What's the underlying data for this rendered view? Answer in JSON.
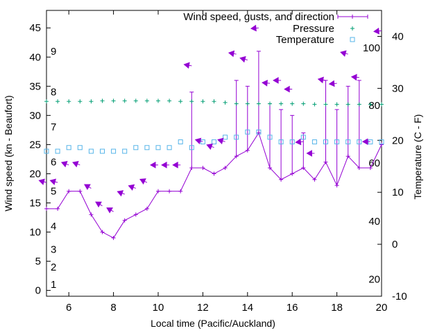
{
  "chart_data": {
    "type": "line",
    "xlabel": "Local time (Pacific/Auckland)",
    "ylabel": "Wind speed (kn - Beaufort)",
    "y2label": "Temperature (C - F)",
    "xlim": [
      5,
      20
    ],
    "ylim": [
      -1,
      48
    ],
    "y2lim": [
      -10,
      45
    ],
    "x_ticks": [
      6,
      8,
      10,
      12,
      14,
      16,
      18,
      20
    ],
    "y_ticks": [
      0,
      5,
      10,
      15,
      20,
      25,
      30,
      35,
      40,
      45
    ],
    "y2_ticks": [
      -10,
      0,
      10,
      20,
      30,
      40
    ],
    "beaufort": [
      {
        "label": "1",
        "y": 1
      },
      {
        "label": "2",
        "y": 4
      },
      {
        "label": "3",
        "y": 7
      },
      {
        "label": "4",
        "y": 11
      },
      {
        "label": "5",
        "y": 17
      },
      {
        "label": "6",
        "y": 22
      },
      {
        "label": "7",
        "y": 28
      },
      {
        "label": "8",
        "y": 34
      },
      {
        "label": "9",
        "y": 41
      }
    ],
    "fahrenheit": [
      {
        "label": "20",
        "t": -6.7
      },
      {
        "label": "40",
        "t": 4.4
      },
      {
        "label": "60",
        "t": 15.6
      },
      {
        "label": "80",
        "t": 26.7
      },
      {
        "label": "100",
        "t": 37.8
      }
    ],
    "legend": [
      {
        "name": "Wind speed, gusts, and direction",
        "color": "#9400d3",
        "marker": "errorbar"
      },
      {
        "name": "Pressure",
        "color": "#009e73",
        "marker": "plus"
      },
      {
        "name": "Temperature",
        "color": "#56b4e9",
        "marker": "square"
      }
    ],
    "legend_position": "top-right",
    "colors": {
      "wind": "#9400d3",
      "pressure": "#009e73",
      "temperature": "#56b4e9"
    },
    "wind": {
      "x": [
        5,
        5.5,
        6,
        6.5,
        7,
        7.5,
        8,
        8.5,
        9,
        9.5,
        10,
        10.5,
        11,
        11.5,
        12,
        12.5,
        13,
        13.5,
        14,
        14.5,
        15,
        15.5,
        16,
        16.5,
        17,
        17.5,
        18,
        18.5,
        19,
        19.5,
        20
      ],
      "speed": [
        14,
        14,
        17,
        17,
        13,
        10,
        9,
        12,
        13,
        14,
        17,
        17,
        17,
        21,
        21,
        20,
        21,
        23,
        24,
        27,
        21,
        19,
        20,
        21,
        19,
        22,
        18,
        23,
        21,
        21,
        25
      ],
      "gust": [
        14,
        14,
        17,
        17,
        13,
        10,
        9,
        12,
        13,
        14,
        17,
        17,
        17,
        34,
        21,
        20,
        21,
        36,
        35,
        41,
        32,
        31,
        30,
        27,
        19,
        36,
        31,
        35,
        36,
        21,
        25
      ]
    },
    "direction_arrows": {
      "x": [
        5,
        5.5,
        6,
        6.5,
        7,
        7.5,
        8,
        8.5,
        9,
        9.5,
        10,
        10.5,
        11,
        11.5,
        12,
        12.5,
        13,
        13.5,
        14,
        14.5,
        15,
        15.5,
        16,
        16.5,
        17,
        17.5,
        18,
        18.5,
        19,
        19.5,
        20
      ],
      "y": [
        18.5,
        18.5,
        21.5,
        21.5,
        17.5,
        14.5,
        13.5,
        16.5,
        17.5,
        18.5,
        21.5,
        21.5,
        21.5,
        38.5,
        25.5,
        24.5,
        25.5,
        40.5,
        39.5,
        45,
        35.5,
        36,
        34.5,
        25.5,
        23.5,
        36,
        35.5,
        40.5,
        36.5,
        25.5,
        44.5
      ],
      "angle": [
        195,
        195,
        200,
        200,
        210,
        210,
        210,
        200,
        200,
        205,
        180,
        180,
        180,
        190,
        195,
        200,
        195,
        190,
        195,
        175,
        185,
        180,
        180,
        175,
        180,
        190,
        175,
        195,
        185,
        180,
        175
      ]
    },
    "pressure": {
      "x": [
        5,
        5.5,
        6,
        6.5,
        7,
        7.5,
        8,
        8.5,
        9,
        9.5,
        10,
        10.5,
        11,
        11.5,
        12,
        12.5,
        13,
        13.5,
        14,
        14.5,
        15,
        15.5,
        16,
        16.5,
        17,
        17.5,
        18,
        18.5,
        19,
        19.5,
        20
      ],
      "y": [
        32.4,
        32.4,
        32.4,
        32.4,
        32.4,
        32.5,
        32.5,
        32.5,
        32.5,
        32.5,
        32.5,
        32.5,
        32.4,
        32.4,
        32.4,
        32.4,
        32.2,
        32.0,
        32.0,
        32.0,
        32.0,
        32.0,
        32.0,
        32.0,
        31.9,
        31.9,
        31.9,
        31.9,
        31.9,
        31.9,
        31.9
      ]
    },
    "temperature": {
      "x": [
        5,
        5.5,
        6,
        6.5,
        7,
        7.5,
        8,
        8.5,
        9,
        9.5,
        10,
        10.5,
        11,
        11.5,
        12,
        12.5,
        13,
        13.5,
        14,
        14.5,
        15,
        15.5,
        16,
        16.5,
        17,
        17.5,
        18,
        18.5,
        19,
        19.5,
        20
      ],
      "t": [
        17.9,
        17.9,
        18.6,
        18.6,
        17.9,
        17.9,
        17.9,
        17.9,
        18.6,
        18.6,
        18.6,
        18.6,
        19.7,
        18.6,
        19.7,
        19.7,
        20.6,
        20.6,
        21.6,
        21.6,
        20.6,
        19.7,
        19.7,
        20.6,
        19.7,
        19.7,
        19.7,
        19.7,
        19.7,
        19.7,
        19.7
      ]
    }
  }
}
